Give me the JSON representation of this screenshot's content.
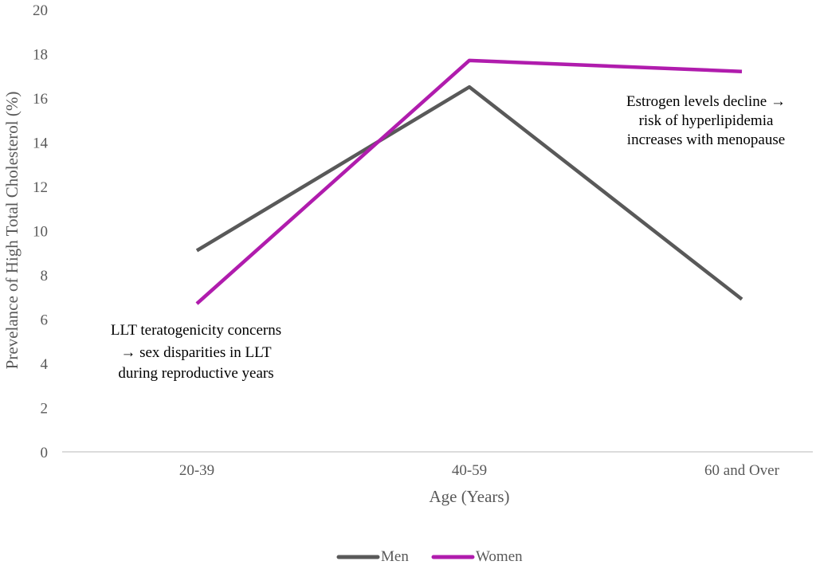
{
  "chart_data": {
    "type": "line",
    "title": "",
    "xlabel": "Age (Years)",
    "ylabel": "Prevelance of High Total Cholesterol (%)",
    "ylim": [
      0,
      20
    ],
    "yticks": [
      "0",
      "2",
      "4",
      "6",
      "8",
      "10",
      "12",
      "14",
      "16",
      "18",
      "20"
    ],
    "categories": [
      "20-39",
      "40-59",
      "60 and Over"
    ],
    "grid": false,
    "legend_position": "bottom",
    "series": [
      {
        "name": "Men",
        "color": "#595959",
        "values": [
          9.1,
          16.5,
          6.9
        ]
      },
      {
        "name": "Women",
        "color": "#b01cad",
        "values": [
          6.7,
          17.7,
          17.2
        ]
      }
    ],
    "annotations": [
      {
        "lines": [
          "LLT teratogenicity concerns",
          "→ sex disparities in LLT",
          "during reproductive years"
        ]
      },
      {
        "lines": [
          "Estrogen levels decline →",
          "risk of hyperlipidemia",
          "increases with menopause"
        ]
      }
    ]
  }
}
